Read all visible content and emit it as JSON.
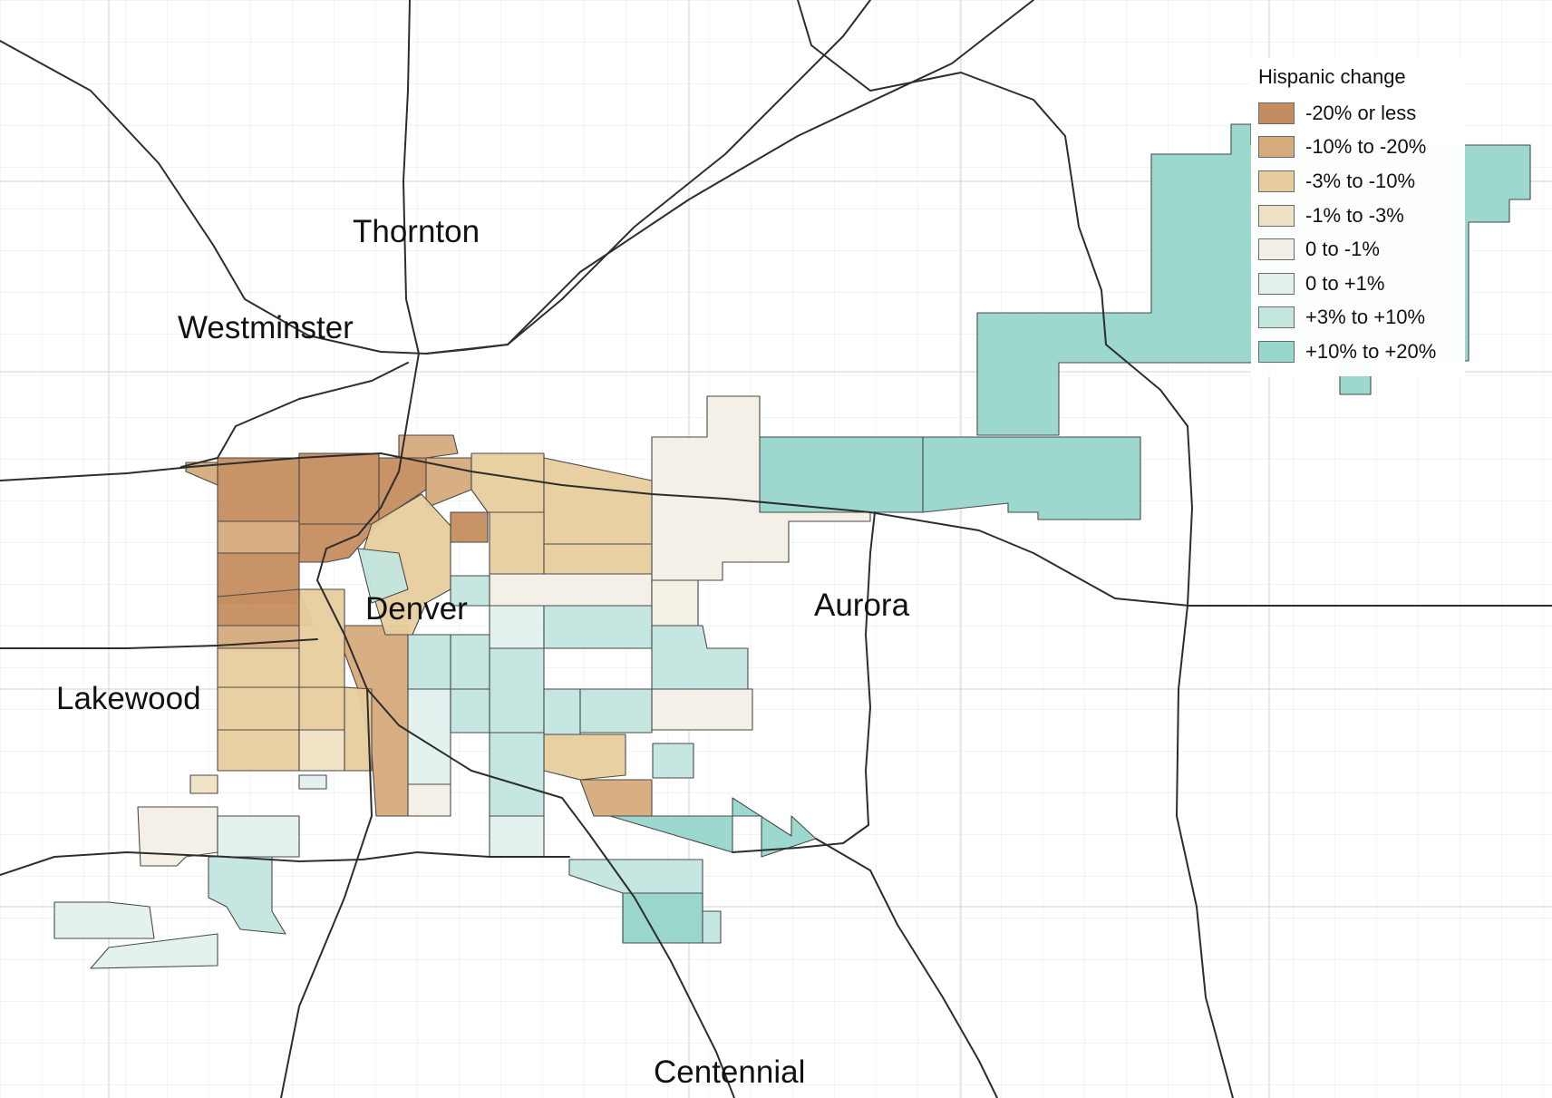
{
  "legend": {
    "title": "Hispanic change",
    "items": [
      {
        "label": "-20% or less",
        "color": "#c48d5f"
      },
      {
        "label": "-10% to -20%",
        "color": "#d6ab7b"
      },
      {
        "label": "-3% to -10%",
        "color": "#e7cd9d"
      },
      {
        "label": "-1% to -3%",
        "color": "#efe1c3"
      },
      {
        "label": "0 to -1%",
        "color": "#f3efe6"
      },
      {
        "label": "0 to +1%",
        "color": "#e3f1ee"
      },
      {
        "label": "+3% to +10%",
        "color": "#c3e6df"
      },
      {
        "label": "+10% to +20%",
        "color": "#97d6cb"
      }
    ]
  },
  "cities": {
    "thornton": "Thornton",
    "westminster": "Westminster",
    "denver": "Denver",
    "aurora": "Aurora",
    "lakewood": "Lakewood",
    "centennial": "Centennial"
  }
}
